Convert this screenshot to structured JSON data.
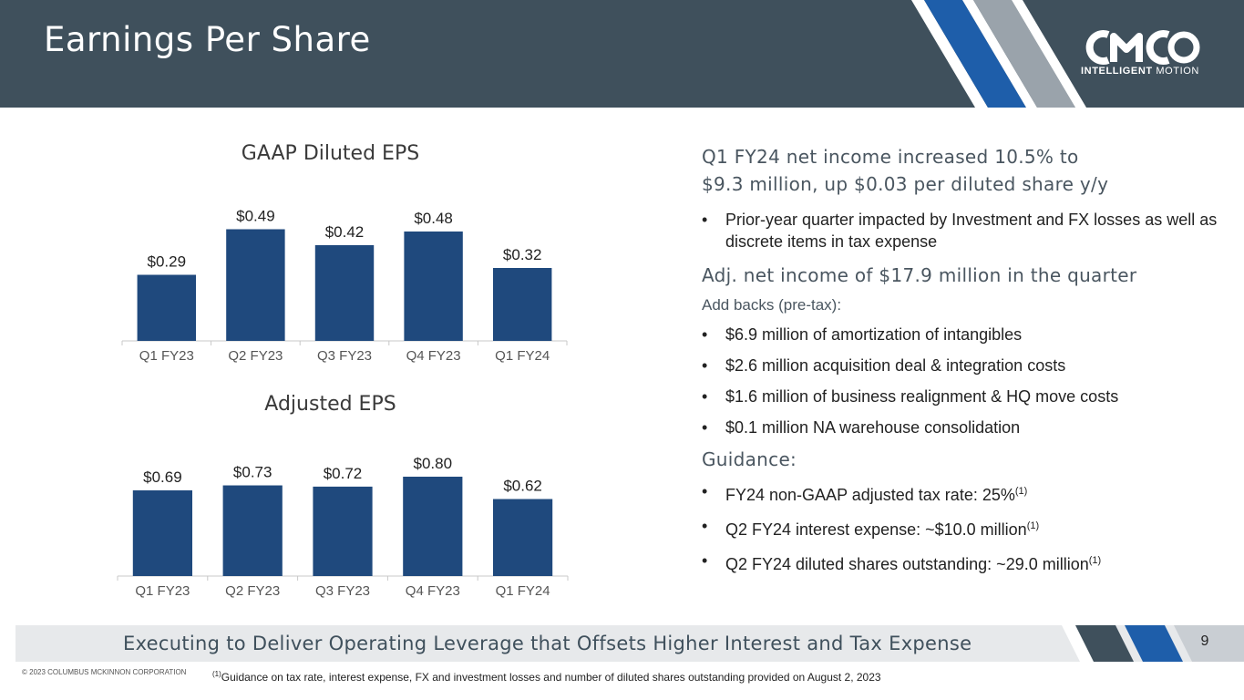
{
  "header": {
    "title": "Earnings Per Share",
    "logo": {
      "name": "CMCO",
      "tagline_bold": "INTELLIGENT",
      "tagline_light": "MOTION"
    }
  },
  "colors": {
    "header_bg": "#3f505c",
    "bar": "#1f497d",
    "stripe_blue": "#1e5eaa",
    "stripe_gray": "#9aa3ab",
    "footer_bg": "#e7e9eb"
  },
  "chart_data": [
    {
      "type": "bar",
      "title": "GAAP Diluted EPS",
      "categories": [
        "Q1 FY23",
        "Q2 FY23",
        "Q3 FY23",
        "Q4 FY23",
        "Q1 FY24"
      ],
      "values": [
        0.29,
        0.49,
        0.42,
        0.48,
        0.32
      ],
      "labels": [
        "$0.29",
        "$0.49",
        "$0.42",
        "$0.48",
        "$0.32"
      ],
      "xlabel": "",
      "ylabel": "",
      "ylim": [
        0,
        0.5
      ]
    },
    {
      "type": "bar",
      "title": "Adjusted EPS",
      "categories": [
        "Q1 FY23",
        "Q2 FY23",
        "Q3 FY23",
        "Q4 FY23",
        "Q1 FY24"
      ],
      "values": [
        0.69,
        0.73,
        0.72,
        0.8,
        0.62
      ],
      "labels": [
        "$0.69",
        "$0.73",
        "$0.72",
        "$0.80",
        "$0.62"
      ],
      "xlabel": "",
      "ylabel": "",
      "ylim": [
        0,
        0.8
      ]
    }
  ],
  "summary": {
    "heading_line1": "Q1 FY24 net income increased 10.5% to",
    "heading_line2": "$9.3 million, up $0.03 per diluted share y/y",
    "bullet1": "Prior-year quarter impacted by Investment and FX losses as well as discrete items in tax expense",
    "adj_heading": "Adj. net income of $17.9 million in the quarter",
    "addbacks_label": "Add backs (pre-tax):",
    "addbacks": [
      "$6.9 million of amortization of intangibles",
      "$2.6 million acquisition deal & integration costs",
      "$1.6 million of business realignment & HQ move costs",
      "$0.1 million NA warehouse consolidation"
    ],
    "guidance_heading": "Guidance:",
    "guidance": [
      {
        "text": "FY24 non-GAAP adjusted tax rate: 25%",
        "sup": "(1)"
      },
      {
        "text": "Q2 FY24 interest expense: ~$10.0 million",
        "sup": "(1)"
      },
      {
        "text": "Q2 FY24 diluted shares outstanding: ~29.0 million",
        "sup": "(1)"
      }
    ]
  },
  "footer": {
    "tagline": "Executing to Deliver Operating Leverage that Offsets Higher Interest and Tax Expense",
    "page_number": "9",
    "copyright": "© 2023 COLUMBUS MCKINNON CORPORATION",
    "footnote_sup": "(1)",
    "footnote": "Guidance on tax rate, interest expense, FX and investment losses and number of diluted shares outstanding provided on August 2, 2023"
  }
}
